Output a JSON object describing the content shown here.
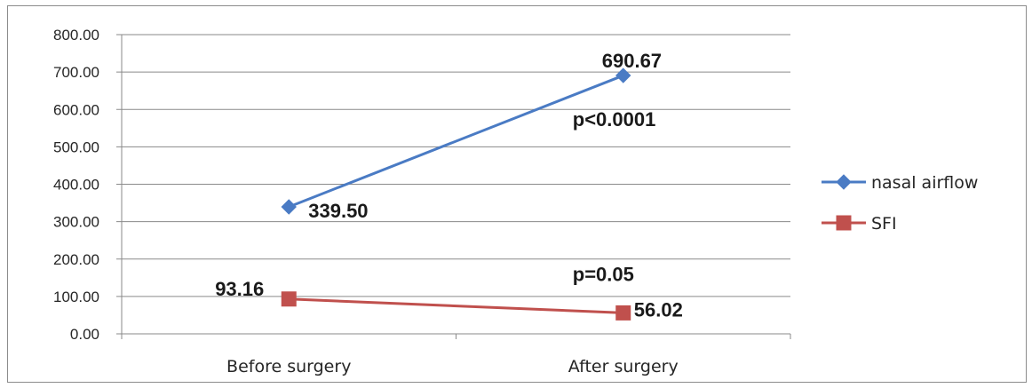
{
  "chart_data": {
    "type": "line",
    "categories": [
      "Before surgery",
      "After surgery"
    ],
    "series": [
      {
        "name": "nasal airflow",
        "values": [
          339.5,
          690.67
        ],
        "color": "#4a7bc4",
        "marker": "diamond"
      },
      {
        "name": "SFI",
        "values": [
          93.16,
          56.02
        ],
        "color": "#c0504d",
        "marker": "square"
      }
    ],
    "data_labels": [
      [
        "339.50",
        "690.67"
      ],
      [
        "93.16",
        "56.02"
      ]
    ],
    "annotations": [
      "p<0.0001",
      "p=0.05"
    ],
    "yticks": [
      "0.00",
      "100.00",
      "200.00",
      "300.00",
      "400.00",
      "500.00",
      "600.00",
      "700.00",
      "800.00"
    ],
    "ylim": [
      0,
      800
    ],
    "grid": true,
    "legend_position": "right"
  }
}
